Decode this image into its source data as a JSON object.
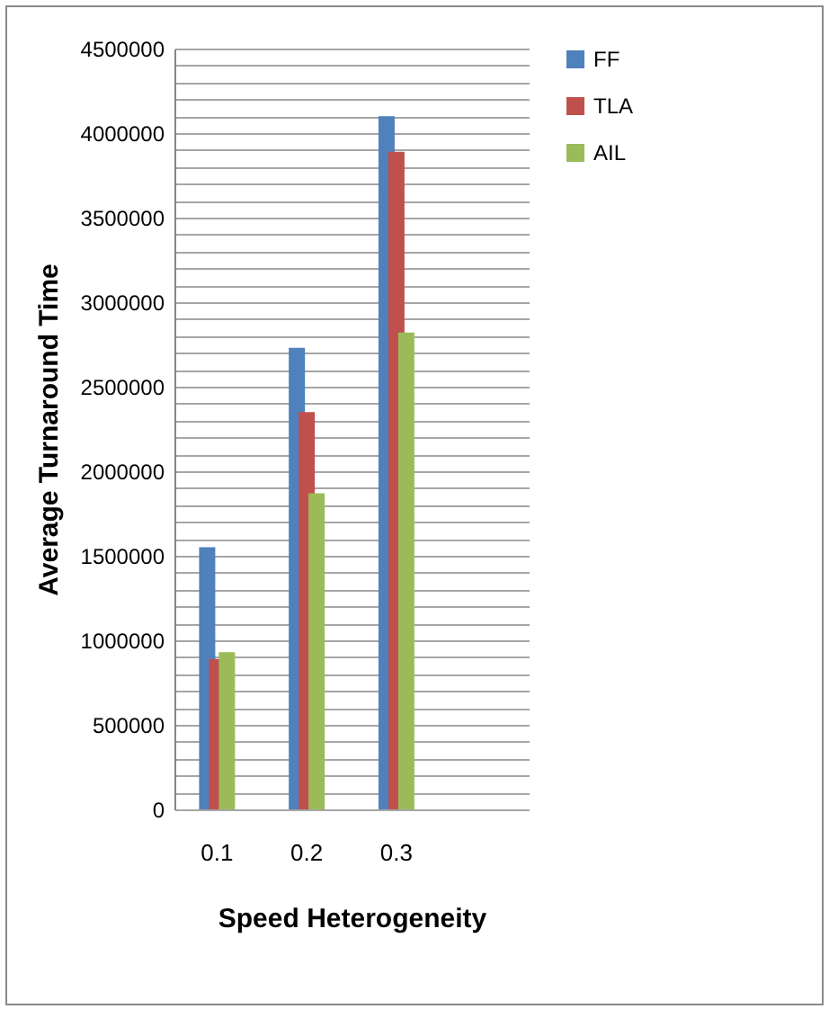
{
  "chart_data": {
    "type": "bar",
    "xlabel": "Speed Heterogeneity",
    "ylabel": "Average Turnaround Time",
    "categories": [
      "0.1",
      "0.2",
      "0.3",
      null
    ],
    "series": [
      {
        "name": "FF",
        "color": "#4f81bd",
        "values": [
          1550000,
          2730000,
          4100000,
          null
        ]
      },
      {
        "name": "TLA",
        "color": "#c0504d",
        "values": [
          890000,
          2350000,
          3890000,
          null
        ]
      },
      {
        "name": "AIL",
        "color": "#9bbb59",
        "values": [
          930000,
          1870000,
          2820000,
          null
        ]
      }
    ],
    "ylim": [
      0,
      4500000
    ],
    "yticks": [
      0,
      {
        "value": 100000,
        "label": null
      },
      {
        "value": 200000,
        "label": null
      },
      {
        "value": 300000,
        "label": null
      },
      {
        "value": 400000,
        "label": null
      },
      500000,
      {
        "value": 600000,
        "label": null
      },
      {
        "value": 700000,
        "label": null
      },
      {
        "value": 800000,
        "label": null
      },
      {
        "value": 900000,
        "label": null
      },
      1000000,
      {
        "value": 1100000,
        "label": null
      },
      {
        "value": 1200000,
        "label": null
      },
      {
        "value": 1300000,
        "label": null
      },
      {
        "value": 1400000,
        "label": null
      },
      1500000,
      {
        "value": 1600000,
        "label": null
      },
      {
        "value": 1700000,
        "label": null
      },
      {
        "value": 1800000,
        "label": null
      },
      {
        "value": 1900000,
        "label": null
      },
      2000000,
      {
        "value": 2100000,
        "label": null
      },
      {
        "value": 2200000,
        "label": null
      },
      {
        "value": 2300000,
        "label": null
      },
      {
        "value": 2400000,
        "label": null
      },
      2500000,
      {
        "value": 2600000,
        "label": null
      },
      {
        "value": 2700000,
        "label": null
      },
      {
        "value": 2800000,
        "label": null
      },
      {
        "value": 2900000,
        "label": null
      },
      3000000,
      {
        "value": 3100000,
        "label": null
      },
      {
        "value": 3200000,
        "label": null
      },
      {
        "value": 3300000,
        "label": null
      },
      {
        "value": 3400000,
        "label": null
      },
      3500000,
      {
        "value": 3600000,
        "label": null
      },
      {
        "value": 3700000,
        "label": null
      },
      {
        "value": 3800000,
        "label": null
      },
      {
        "value": 3900000,
        "label": null
      },
      4000000,
      {
        "value": 4100000,
        "label": null
      },
      {
        "value": 4200000,
        "label": null
      },
      {
        "value": 4300000,
        "label": null
      },
      {
        "value": 4400000,
        "label": null
      },
      4500000
    ],
    "grid": true,
    "legend": "right"
  }
}
